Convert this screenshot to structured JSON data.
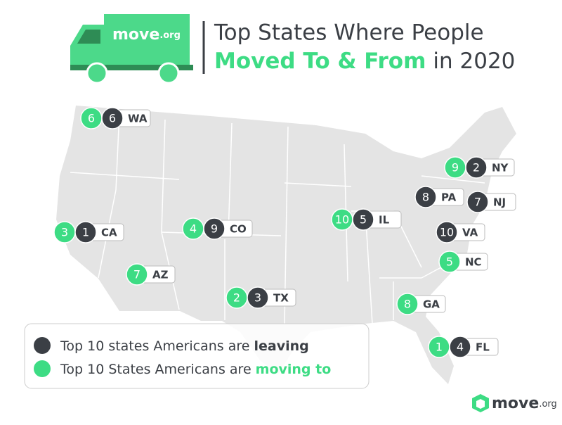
{
  "header": {
    "logo": "move",
    "logo_suffix": ".org",
    "title_line1": "Top States Where People",
    "title_highlight": "Moved To & From",
    "title_rest": "in 2020"
  },
  "states": [
    {
      "abbr": "WA",
      "moving_to": 6,
      "leaving": 6
    },
    {
      "abbr": "NY",
      "moving_to": 9,
      "leaving": 2
    },
    {
      "abbr": "PA",
      "leaving": 8
    },
    {
      "abbr": "NJ",
      "leaving": 7
    },
    {
      "abbr": "CA",
      "moving_to": 3,
      "leaving": 1
    },
    {
      "abbr": "CO",
      "moving_to": 4,
      "leaving": 9
    },
    {
      "abbr": "IL",
      "moving_to": 10,
      "leaving": 5
    },
    {
      "abbr": "VA",
      "leaving": 10
    },
    {
      "abbr": "NC",
      "moving_to": 5
    },
    {
      "abbr": "AZ",
      "moving_to": 7
    },
    {
      "abbr": "TX",
      "moving_to": 2,
      "leaving": 3
    },
    {
      "abbr": "GA",
      "moving_to": 8
    },
    {
      "abbr": "FL",
      "moving_to": 1,
      "leaving": 4
    }
  ],
  "legend": {
    "leaving_text": "Top 10 states Americans are",
    "leaving_emphasis": "leaving",
    "moving_text": "Top 10 States Americans are",
    "moving_emphasis": "moving to"
  },
  "footer": {
    "logo": "move",
    "logo_suffix": ".org"
  }
}
